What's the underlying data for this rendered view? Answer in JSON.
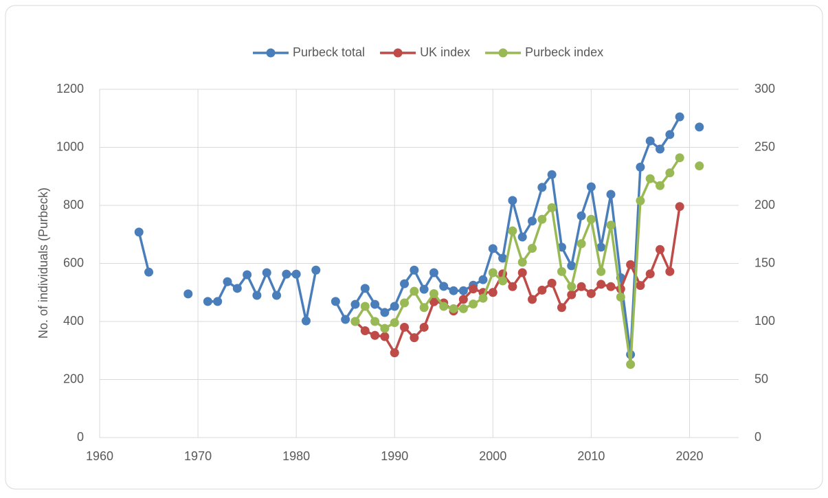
{
  "chart_data": {
    "type": "line",
    "y_label": "No. of individuals (Purbeck)",
    "x": [
      1964,
      1965,
      1966,
      1967,
      1968,
      1969,
      1970,
      1971,
      1972,
      1973,
      1974,
      1975,
      1976,
      1977,
      1978,
      1979,
      1980,
      1981,
      1982,
      1983,
      1984,
      1985,
      1986,
      1987,
      1988,
      1989,
      1990,
      1991,
      1992,
      1993,
      1994,
      1995,
      1996,
      1997,
      1998,
      1999,
      2000,
      2001,
      2002,
      2003,
      2004,
      2005,
      2006,
      2007,
      2008,
      2009,
      2010,
      2011,
      2012,
      2013,
      2014,
      2015,
      2016,
      2017,
      2018,
      2019,
      2020,
      2021
    ],
    "series": [
      {
        "name": "Purbeck total",
        "color": "#4a7ebb",
        "axis": "y",
        "values": [
          708,
          570,
          null,
          null,
          null,
          495,
          null,
          469,
          469,
          537,
          514,
          561,
          490,
          568,
          490,
          563,
          563,
          402,
          577,
          null,
          469,
          407,
          459,
          514,
          459,
          431,
          452,
          530,
          577,
          511,
          568,
          521,
          506,
          506,
          525,
          544,
          651,
          618,
          817,
          691,
          746,
          862,
          906,
          656,
          592,
          764,
          864,
          656,
          838,
          551,
          286,
          932,
          1022,
          994,
          1044,
          1105,
          null,
          1070
        ]
      },
      {
        "name": "UK index",
        "color": "#be4b48",
        "axis": "y2",
        "values": [
          null,
          null,
          null,
          null,
          null,
          null,
          null,
          null,
          null,
          null,
          null,
          null,
          null,
          null,
          null,
          null,
          null,
          null,
          null,
          null,
          null,
          null,
          100,
          92,
          88,
          87,
          73,
          95,
          86,
          95,
          117,
          116,
          109,
          119,
          128,
          125,
          125,
          141,
          130,
          142,
          119,
          127,
          133,
          112,
          123,
          130,
          124,
          132,
          130,
          128,
          149,
          131,
          141,
          162,
          143,
          199,
          null,
          null
        ]
      },
      {
        "name": "Purbeck index",
        "color": "#98b954",
        "axis": "y2",
        "values": [
          null,
          null,
          null,
          null,
          null,
          null,
          null,
          null,
          null,
          null,
          null,
          null,
          null,
          null,
          null,
          null,
          null,
          null,
          null,
          null,
          null,
          null,
          100,
          113,
          100,
          94,
          99,
          116,
          126,
          112,
          124,
          113,
          111,
          111,
          115,
          120,
          142,
          135,
          178,
          151,
          163,
          188,
          198,
          143,
          130,
          167,
          188,
          143,
          183,
          121,
          63,
          204,
          223,
          217,
          228,
          241,
          null,
          234
        ]
      }
    ],
    "xlim": [
      1960,
      2025
    ],
    "xticks": [
      1960,
      1970,
      1980,
      1990,
      2000,
      2010,
      2020
    ],
    "ylim": [
      0,
      1200
    ],
    "yticks": [
      0,
      200,
      400,
      600,
      800,
      1000,
      1200
    ],
    "y2lim": [
      0,
      300
    ],
    "y2ticks": [
      0,
      50,
      100,
      150,
      200,
      250,
      300
    ],
    "grid": true,
    "legend": "top"
  }
}
